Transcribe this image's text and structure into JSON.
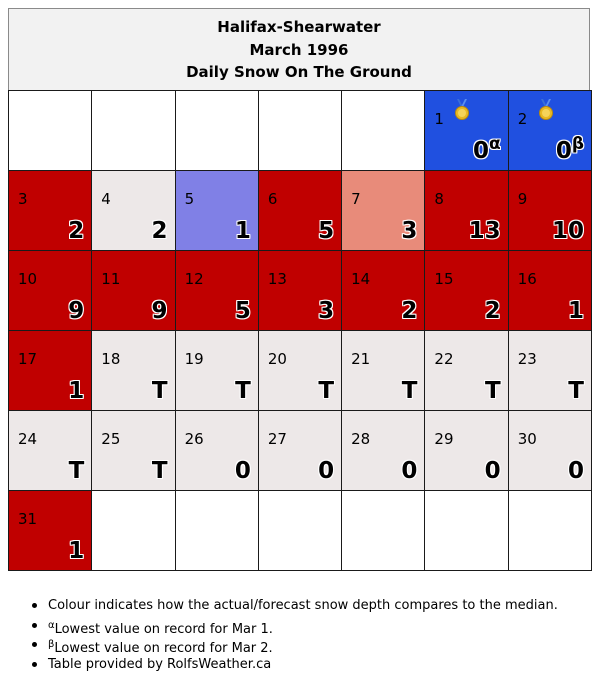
{
  "header": {
    "station": "Halifax-Shearwater",
    "month": "March 1996",
    "subtitle": "Daily Snow On The Ground"
  },
  "colors": {
    "above_median": "#c00000",
    "median": "#ede8e8",
    "below_median": "#8080e6",
    "slightly_above": "#e88b7a",
    "record_low": "#2050e0",
    "empty": "#ffffff"
  },
  "calendar": {
    "weeks": [
      [
        {
          "day": "",
          "value": "",
          "status": "empty"
        },
        {
          "day": "",
          "value": "",
          "status": "empty"
        },
        {
          "day": "",
          "value": "",
          "status": "empty"
        },
        {
          "day": "",
          "value": "",
          "status": "empty"
        },
        {
          "day": "",
          "value": "",
          "status": "empty"
        },
        {
          "day": "1",
          "value": "0",
          "sup": "α",
          "status": "record_low",
          "medal": true
        },
        {
          "day": "2",
          "value": "0",
          "sup": "β",
          "status": "record_low",
          "medal": true
        }
      ],
      [
        {
          "day": "3",
          "value": "2",
          "status": "above_median"
        },
        {
          "day": "4",
          "value": "2",
          "status": "median"
        },
        {
          "day": "5",
          "value": "1",
          "status": "below_median"
        },
        {
          "day": "6",
          "value": "5",
          "status": "above_median"
        },
        {
          "day": "7",
          "value": "3",
          "status": "slightly_above"
        },
        {
          "day": "8",
          "value": "13",
          "status": "above_median"
        },
        {
          "day": "9",
          "value": "10",
          "status": "above_median"
        }
      ],
      [
        {
          "day": "10",
          "value": "9",
          "status": "above_median"
        },
        {
          "day": "11",
          "value": "9",
          "status": "above_median"
        },
        {
          "day": "12",
          "value": "5",
          "status": "above_median"
        },
        {
          "day": "13",
          "value": "3",
          "status": "above_median"
        },
        {
          "day": "14",
          "value": "2",
          "status": "above_median"
        },
        {
          "day": "15",
          "value": "2",
          "status": "above_median"
        },
        {
          "day": "16",
          "value": "1",
          "status": "above_median"
        }
      ],
      [
        {
          "day": "17",
          "value": "1",
          "status": "above_median"
        },
        {
          "day": "18",
          "value": "T",
          "status": "median"
        },
        {
          "day": "19",
          "value": "T",
          "status": "median"
        },
        {
          "day": "20",
          "value": "T",
          "status": "median"
        },
        {
          "day": "21",
          "value": "T",
          "status": "median"
        },
        {
          "day": "22",
          "value": "T",
          "status": "median"
        },
        {
          "day": "23",
          "value": "T",
          "status": "median"
        }
      ],
      [
        {
          "day": "24",
          "value": "T",
          "status": "median"
        },
        {
          "day": "25",
          "value": "T",
          "status": "median"
        },
        {
          "day": "26",
          "value": "0",
          "status": "median"
        },
        {
          "day": "27",
          "value": "0",
          "status": "median"
        },
        {
          "day": "28",
          "value": "0",
          "status": "median"
        },
        {
          "day": "29",
          "value": "0",
          "status": "median"
        },
        {
          "day": "30",
          "value": "0",
          "status": "median"
        }
      ],
      [
        {
          "day": "31",
          "value": "1",
          "status": "above_median"
        },
        {
          "day": "",
          "value": "",
          "status": "empty"
        },
        {
          "day": "",
          "value": "",
          "status": "empty"
        },
        {
          "day": "",
          "value": "",
          "status": "empty"
        },
        {
          "day": "",
          "value": "",
          "status": "empty"
        },
        {
          "day": "",
          "value": "",
          "status": "empty"
        },
        {
          "day": "",
          "value": "",
          "status": "empty"
        }
      ]
    ]
  },
  "notes": {
    "colour_note": "Colour indicates how the actual/forecast snow depth compares to the median.",
    "alpha_mark": "α",
    "alpha_text": "Lowest value on record for Mar 1.",
    "beta_mark": "β",
    "beta_text": "Lowest value on record for Mar 2.",
    "credit": "Table provided by RolfsWeather.ca"
  }
}
